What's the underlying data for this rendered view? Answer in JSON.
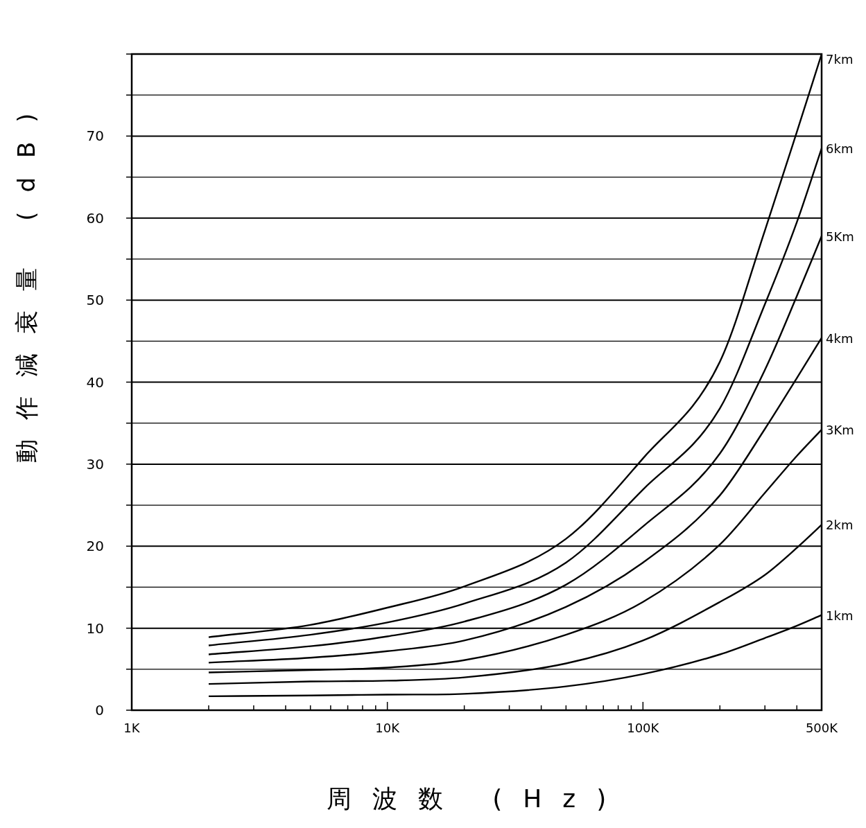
{
  "chart_data": {
    "type": "line",
    "xlabel": "周波数 (Hz)",
    "ylabel": "動作減衰量 (dB)",
    "x": [
      2000,
      5000,
      10000,
      20000,
      50000,
      100000,
      200000,
      300000,
      400000,
      500000
    ],
    "series": [
      {
        "name": "7km",
        "color": "#000000",
        "values": [
          8.9,
          10.4,
          12.5,
          15.1,
          20.9,
          30.7,
          42.5,
          58.5,
          70.5,
          80
        ]
      },
      {
        "name": "6km",
        "color": "#000000",
        "values": [
          7.9,
          9.2,
          10.7,
          13.0,
          18.0,
          26.9,
          36.8,
          49.5,
          59.5,
          68.5
        ]
      },
      {
        "name": "5Km",
        "color": "#000000",
        "values": [
          6.8,
          7.8,
          9.0,
          10.8,
          15.3,
          22.4,
          31.3,
          41.5,
          50.5,
          57.8
        ]
      },
      {
        "name": "4km",
        "color": "#000000",
        "values": [
          5.8,
          6.4,
          7.2,
          8.5,
          12.6,
          18.0,
          26.2,
          34.3,
          40.5,
          45.4
        ]
      },
      {
        "name": "3Km",
        "color": "#000000",
        "values": [
          4.6,
          4.9,
          5.2,
          6.1,
          9.2,
          13.2,
          20.2,
          26.5,
          31.0,
          34.2
        ]
      },
      {
        "name": "2km",
        "color": "#000000",
        "values": [
          3.2,
          3.5,
          3.6,
          4.0,
          5.7,
          8.5,
          13.2,
          16.5,
          19.8,
          22.6
        ]
      },
      {
        "name": "1km",
        "color": "#000000",
        "values": [
          1.7,
          1.8,
          1.9,
          2.0,
          2.9,
          4.4,
          6.8,
          8.8,
          10.3,
          11.6
        ]
      }
    ],
    "xlim": [
      1000,
      500000
    ],
    "ylim": [
      0,
      80
    ],
    "log": "x",
    "grid": "y",
    "xticks": [
      {
        "value": 1000,
        "label": "1K"
      },
      {
        "value": 2000,
        "label": null
      },
      {
        "value": 3000,
        "label": null
      },
      {
        "value": 4000,
        "label": null
      },
      {
        "value": 5000,
        "label": null
      },
      {
        "value": 6000,
        "label": null
      },
      {
        "value": 7000,
        "label": null
      },
      {
        "value": 8000,
        "label": null
      },
      {
        "value": 9000,
        "label": null
      },
      {
        "value": 10000,
        "label": "10K"
      },
      {
        "value": 20000,
        "label": null
      },
      {
        "value": 30000,
        "label": null
      },
      {
        "value": 40000,
        "label": null
      },
      {
        "value": 50000,
        "label": null
      },
      {
        "value": 60000,
        "label": null
      },
      {
        "value": 70000,
        "label": null
      },
      {
        "value": 80000,
        "label": null
      },
      {
        "value": 90000,
        "label": null
      },
      {
        "value": 100000,
        "label": "100K"
      },
      {
        "value": 200000,
        "label": null
      },
      {
        "value": 300000,
        "label": null
      },
      {
        "value": 400000,
        "label": null
      },
      {
        "value": 500000,
        "label": "500K"
      }
    ],
    "yticks": [
      0,
      {
        "value": 5,
        "label": null
      },
      10,
      {
        "value": 15,
        "label": null
      },
      20,
      {
        "value": 25,
        "label": null
      },
      30,
      {
        "value": 35,
        "label": null
      },
      40,
      {
        "value": 45,
        "label": null
      },
      50,
      {
        "value": 55,
        "label": null
      },
      60,
      {
        "value": 65,
        "label": null
      },
      70,
      {
        "value": 75,
        "label": null
      },
      {
        "value": 80,
        "label": null
      }
    ]
  }
}
